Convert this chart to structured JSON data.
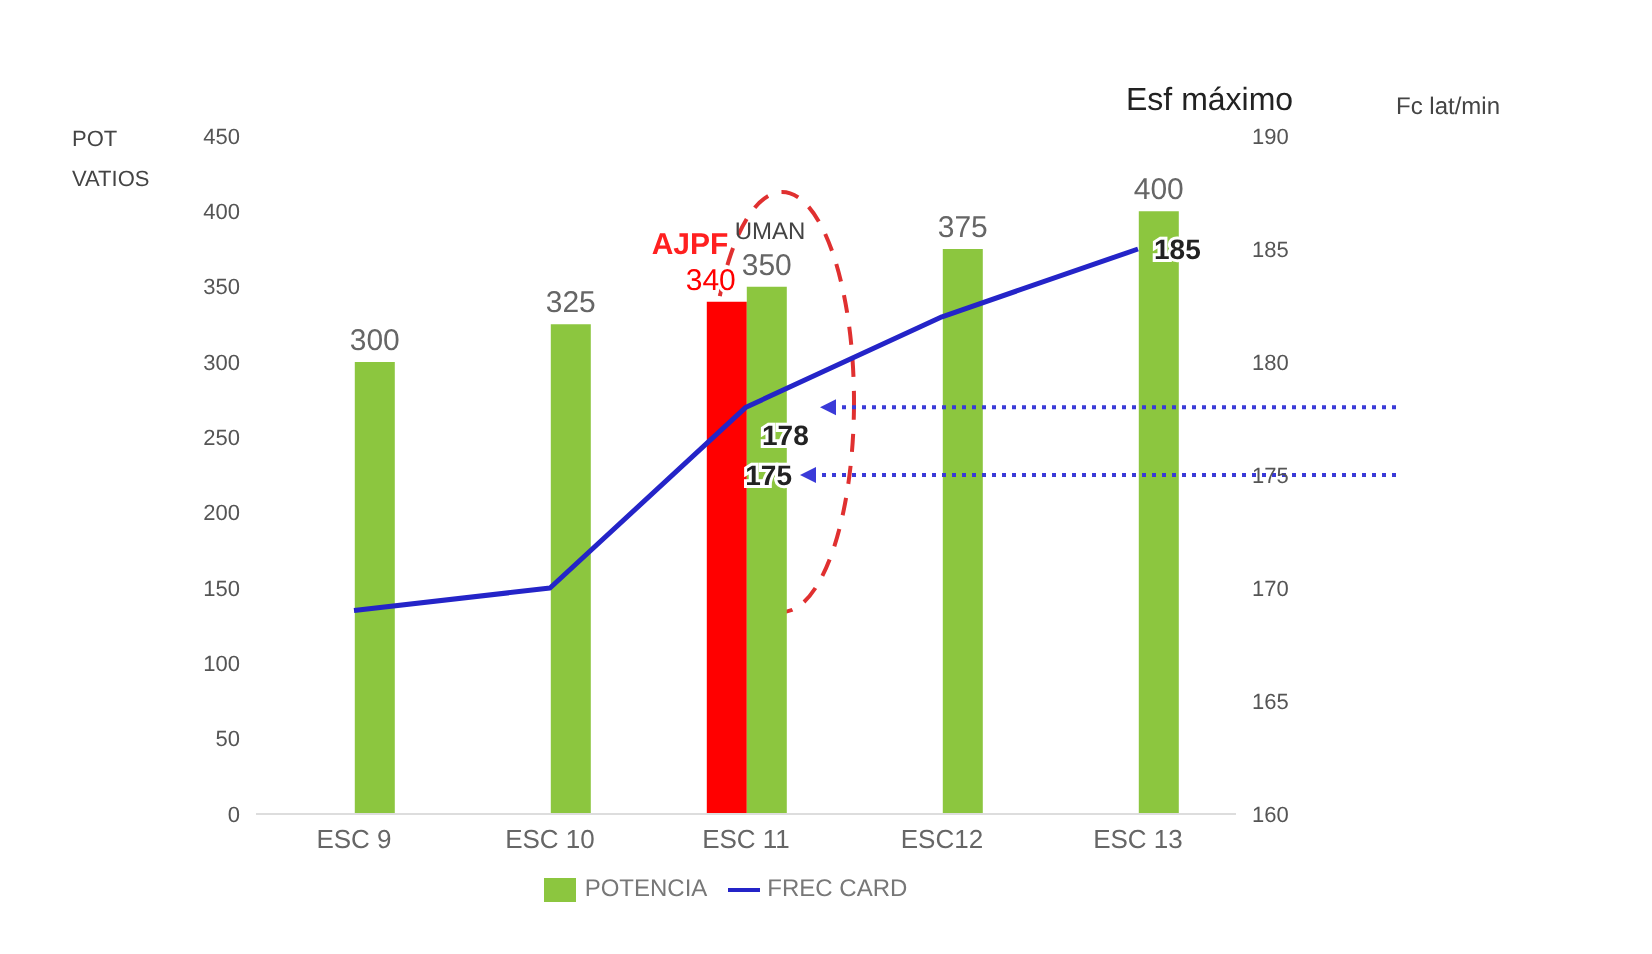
{
  "chart_data": {
    "type": "bar",
    "ylabel": "POT VATIOS",
    "y2label": "Fc lat/min",
    "categories": [
      "ESC 9",
      "ESC 10",
      "ESC 11",
      "ESC12",
      "ESC 13"
    ],
    "series": [
      {
        "color": "#ff0000",
        "values": [
          null,
          null,
          340,
          null,
          null
        ],
        "value_labels": [
          null,
          null,
          "340",
          null,
          null
        ]
      },
      {
        "name": "POTENCIA",
        "color": "#8cc63f",
        "values": [
          300,
          325,
          350,
          375,
          400
        ],
        "value_labels": [
          "300",
          "325",
          "350",
          "375",
          "400"
        ]
      },
      {
        "name": "FREC CARD",
        "type": "line",
        "axis": "y2",
        "color": "#2424c8",
        "values": [
          169,
          170,
          178,
          182,
          185
        ],
        "value_labels": [
          null,
          null,
          "178",
          null,
          "185"
        ]
      }
    ],
    "ylim": [
      0,
      450
    ],
    "yticks": [
      0,
      50,
      100,
      150,
      200,
      250,
      300,
      350,
      400,
      450
    ],
    "y2lim": [
      160,
      190
    ],
    "y2ticks": [
      160,
      165,
      170,
      175,
      180,
      185,
      190
    ],
    "ref_lines": [
      {
        "axis": "y2",
        "value": 178,
        "color": "#3a3ad8",
        "line_style": "dotted"
      },
      {
        "axis": "y2",
        "value": 175,
        "label": "175",
        "color": "#3a3ad8",
        "line_style": "dotted"
      }
    ],
    "annotations": [
      "Esf máximo",
      {
        "text": "AJPF",
        "x": "ESC 11",
        "y": 340
      },
      {
        "text": "UMAN",
        "x": "ESC 11",
        "y": 350
      }
    ],
    "grid": false,
    "legend": "bottom",
    "marker": "none",
    "line_style": "solid"
  }
}
